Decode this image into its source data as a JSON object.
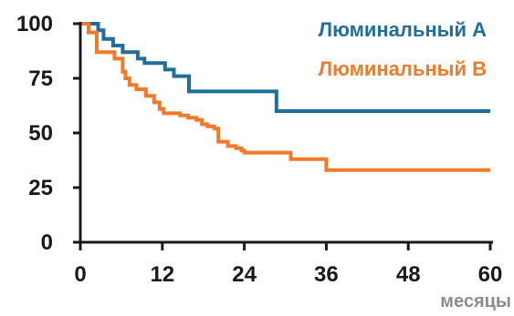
{
  "chart_data": {
    "type": "line",
    "step": true,
    "x_unit_label": "месяцы",
    "xlim": [
      0,
      60
    ],
    "ylim": [
      0,
      100
    ],
    "x_ticks": [
      "0",
      "12",
      "24",
      "36",
      "48",
      "60"
    ],
    "y_ticks": [
      "0",
      "25",
      "50",
      "75",
      "100"
    ],
    "grid": false,
    "legend_placement": "top-right",
    "series": [
      {
        "name": "Люминальный А",
        "color": "#1f6e9b",
        "x": [
          0,
          2.6,
          3.4,
          4.8,
          6.2,
          8.4,
          9.4,
          12.4,
          13.7,
          15.9,
          28.7,
          60
        ],
        "y": [
          100,
          97,
          93,
          90,
          87,
          84,
          82,
          79,
          76,
          69,
          60,
          60
        ]
      },
      {
        "name": "Люминальный В",
        "color": "#f07a2a",
        "x": [
          0,
          1.2,
          2.4,
          5.0,
          6.2,
          6.6,
          7.2,
          8.2,
          9.6,
          10.8,
          11.6,
          12.2,
          14.6,
          15.8,
          17.0,
          17.8,
          18.6,
          19.6,
          20.2,
          21.6,
          22.8,
          23.6,
          24.0,
          30.8,
          36.0,
          60
        ],
        "y": [
          100,
          96,
          87,
          84,
          78,
          75,
          72,
          70,
          67,
          64,
          61,
          59,
          58,
          57,
          56,
          54,
          53,
          52,
          46,
          44,
          43,
          42,
          41,
          38,
          33,
          33
        ]
      }
    ]
  }
}
